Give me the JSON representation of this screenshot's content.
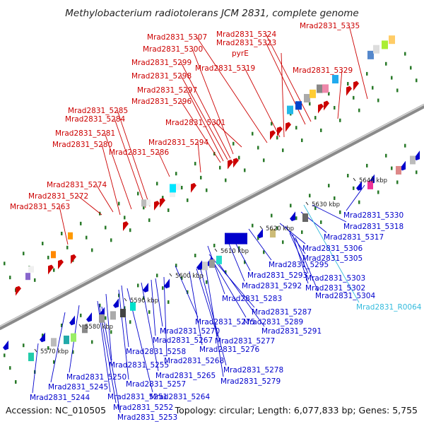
{
  "title": "Methylobacterium radiotolerans JCM 2831, complete genome",
  "footer": {
    "accession": "Accession: NC_010505",
    "summary": "Topology: circular; Length: 6,077,833 bp; Genes: 5,755"
  },
  "colors": {
    "forward": "#cc0000",
    "reverse": "#0000cc",
    "rna": "#33bbdd",
    "backbone": "#999999",
    "tickmark": "#2a7a2a"
  },
  "ticks": [
    "5570 kbp",
    "5580 kbp",
    "5590 kbp",
    "5600 kbp",
    "5610 kbp",
    "5620 kbp",
    "5630 kbp",
    "5640 kbp"
  ],
  "forward_labels": [
    "Mrad2831_5335",
    "Mrad2831_5324",
    "Mrad2831_5323",
    "Mrad2831_5307",
    "pyrE",
    "Mrad2831_5329",
    "Mrad2831_5300",
    "Mrad2831_5319",
    "Mrad2831_5299",
    "Mrad2831_5298",
    "Mrad2831_5297",
    "Mrad2831_5296",
    "Mrad2831_5285",
    "Mrad2831_5284",
    "Mrad2831_5301",
    "Mrad2831_5281",
    "Mrad2831_5294",
    "Mrad2831_5280",
    "Mrad2831_5286",
    "Mrad2831_5274",
    "Mrad2831_5272",
    "Mrad2831_5263"
  ],
  "reverse_labels": [
    "Mrad2831_5330",
    "Mrad2831_5318",
    "Mrad2831_5317",
    "Mrad2831_5306",
    "Mrad2831_5295",
    "Mrad2831_5305",
    "Mrad2831_5293",
    "Mrad2831_5303",
    "Mrad2831_5292",
    "Mrad2831_5302",
    "Mrad2831_5304",
    "Mrad2831_R0064",
    "Mrad2831_5283",
    "Mrad2831_5287",
    "Mrad2831_5275",
    "Mrad2831_5289",
    "Mrad2831_5270",
    "Mrad2831_5291",
    "Mrad2831_5267",
    "Mrad2831_5277",
    "Mrad2831_5276",
    "Mrad2831_5258",
    "Mrad2831_5268",
    "Mrad2831_5255",
    "Mrad2831_5278",
    "Mrad2831_5265",
    "Mrad2831_5250",
    "Mrad2831_5279",
    "Mrad2831_5257",
    "Mrad2831_5245",
    "Mrad2831_5251",
    "Mrad2831_5264",
    "Mrad2831_5244",
    "Mrad2831_5252",
    "Mrad2831_5253"
  ]
}
